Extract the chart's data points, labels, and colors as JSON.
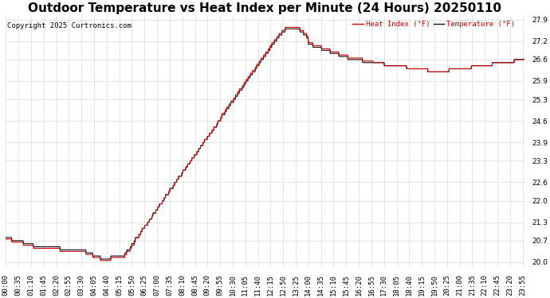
{
  "title": "Outdoor Temperature vs Heat Index per Minute (24 Hours) 20250110",
  "copyright": "Copyright 2025 Curtronics.com",
  "legend_heat": "Heat Index (°F)",
  "legend_temp": "Temperature (°F)",
  "yticks": [
    20.0,
    20.7,
    21.3,
    22.0,
    22.6,
    23.3,
    23.9,
    24.6,
    25.3,
    25.9,
    26.6,
    27.2,
    27.9
  ],
  "ymin": 19.85,
  "ymax": 28.05,
  "bg_color": "#ffffff",
  "grid_color": "#cccccc",
  "line_color_heat": "#cc0000",
  "line_color_temp": "#111111",
  "title_fontsize": 11,
  "tick_fontsize": 6.5,
  "xtick_interval": 35,
  "figwidth": 6.9,
  "figheight": 3.75,
  "dpi": 100
}
